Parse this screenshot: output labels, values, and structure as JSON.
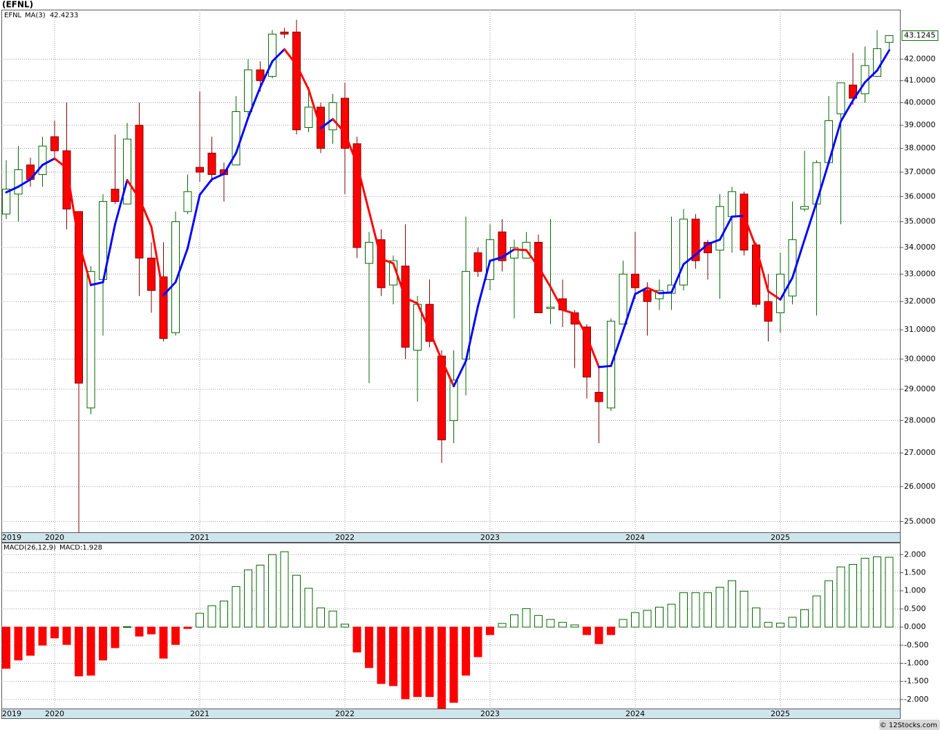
{
  "chart_data": [
    {
      "type": "candlestick",
      "title": "(EFNL)",
      "categories": [
        "2019",
        null,
        null,
        null,
        "2020",
        null,
        null,
        null,
        null,
        null,
        null,
        null,
        null,
        null,
        null,
        null,
        "2021",
        null,
        null,
        null,
        null,
        null,
        null,
        null,
        null,
        null,
        null,
        null,
        "2022",
        null,
        null,
        null,
        null,
        null,
        null,
        null,
        null,
        null,
        null,
        null,
        "2023",
        null,
        null,
        null,
        null,
        null,
        null,
        null,
        null,
        null,
        null,
        null,
        "2024",
        null,
        null,
        null,
        null,
        null,
        null,
        null,
        null,
        null,
        null,
        null,
        "2025",
        null,
        null,
        null,
        null,
        null,
        null,
        null,
        null,
        null
      ],
      "series": [
        {
          "name": "EFNL",
          "up_color": "#006400",
          "down_color": "#ff0000",
          "open": [
            35.3,
            36.1,
            37.3,
            36.9,
            38.5,
            37.9,
            35.4,
            28.4,
            32.8,
            36.3,
            35.7,
            39.0,
            33.6,
            32.9,
            30.9,
            35.4,
            37.2,
            37.8,
            37.1,
            37.3,
            39.6,
            41.5,
            41.2,
            43.3,
            43.3,
            38.9,
            39.8,
            38.8,
            40.2,
            38.2,
            33.4,
            34.3,
            32.6,
            33.3,
            30.3,
            31.9,
            30.1,
            28.0,
            30.0,
            33.8,
            32.8,
            34.6,
            33.6,
            33.6,
            34.2,
            31.75,
            32.1,
            31.6,
            31.1,
            28.9,
            28.4,
            31.2,
            33.0,
            32.4,
            32.1,
            32.3,
            32.6,
            35.1,
            34.2,
            33.9,
            35.2,
            36.1,
            34.1,
            32.0,
            31.6,
            32.2,
            35.5,
            35.7,
            37.4,
            39.5,
            40.8,
            40.4,
            41.2,
            42.8
          ],
          "high": [
            37.5,
            38.1,
            37.6,
            38.5,
            39.2,
            40.0,
            35.4,
            33.3,
            36.1,
            38.6,
            39.1,
            40.0,
            34.2,
            34.2,
            35.4,
            36.9,
            40.5,
            38.5,
            37.4,
            40.3,
            42.0,
            41.9,
            43.4,
            43.5,
            43.9,
            40.7,
            40.0,
            40.4,
            40.9,
            38.5,
            34.6,
            34.7,
            33.7,
            34.9,
            32.2,
            32.8,
            30.3,
            30.3,
            35.2,
            34.0,
            34.9,
            35.1,
            34.3,
            34.6,
            34.5,
            35.1,
            32.8,
            31.7,
            31.2,
            29.7,
            31.4,
            33.5,
            34.6,
            32.7,
            32.8,
            35.2,
            35.5,
            35.3,
            34.3,
            36.1,
            36.4,
            36.2,
            34.2,
            33.0,
            33.8,
            35.8,
            37.9,
            37.5,
            40.3,
            40.9,
            42.3,
            42.6,
            43.4,
            43.15
          ],
          "low": [
            35.1,
            35.0,
            36.4,
            36.4,
            37.5,
            34.7,
            24.7,
            28.2,
            30.8,
            35.7,
            35.7,
            32.2,
            31.6,
            30.6,
            30.8,
            35.3,
            36.6,
            36.6,
            35.8,
            37.3,
            39.3,
            40.5,
            41.1,
            43.0,
            38.6,
            38.7,
            37.8,
            38.2,
            36.1,
            33.6,
            29.2,
            32.2,
            31.9,
            30.0,
            28.6,
            30.4,
            26.7,
            27.3,
            28.8,
            32.9,
            32.4,
            33.1,
            31.4,
            33.6,
            31.6,
            31.2,
            31.1,
            29.7,
            28.7,
            27.3,
            28.3,
            31.2,
            32.1,
            30.8,
            31.7,
            31.7,
            32.4,
            33.2,
            32.8,
            32.1,
            33.8,
            33.7,
            31.8,
            30.6,
            30.9,
            31.9,
            35.4,
            31.5,
            37.3,
            34.9,
            39.9,
            40.0,
            41.2,
            42.4
          ],
          "close": [
            36.3,
            37.1,
            36.7,
            38.1,
            37.9,
            35.5,
            29.2,
            33.1,
            35.8,
            35.8,
            38.4,
            33.6,
            32.4,
            30.7,
            35.0,
            36.2,
            37.0,
            36.9,
            36.9,
            39.6,
            41.5,
            41.0,
            43.2,
            43.2,
            38.8,
            39.8,
            38.0,
            40.0,
            38.0,
            34.0,
            34.2,
            32.5,
            33.5,
            30.4,
            31.9,
            30.6,
            27.4,
            29.3,
            33.1,
            33.1,
            34.3,
            33.5,
            34.0,
            34.2,
            31.6,
            31.8,
            31.7,
            31.2,
            29.4,
            28.6,
            31.3,
            33.0,
            32.5,
            32.0,
            32.4,
            32.6,
            35.1,
            33.5,
            33.8,
            35.6,
            36.2,
            33.9,
            31.9,
            31.3,
            33.0,
            34.3,
            35.6,
            37.4,
            39.2,
            40.9,
            40.2,
            41.7,
            42.5,
            43.1245
          ]
        },
        {
          "name": "MA(3)",
          "type": "line",
          "up_color": "#0000ff",
          "down_color": "#ff0000",
          "values": [
            36.17,
            36.4,
            36.7,
            37.3,
            37.57,
            37.17,
            34.2,
            32.6,
            32.7,
            34.9,
            36.67,
            35.93,
            34.8,
            32.23,
            32.7,
            33.97,
            36.07,
            36.7,
            36.93,
            37.8,
            39.33,
            40.7,
            41.9,
            42.47,
            41.73,
            40.6,
            38.87,
            39.27,
            38.67,
            37.33,
            35.4,
            33.57,
            33.4,
            32.13,
            31.93,
            30.97,
            29.97,
            29.1,
            29.93,
            31.83,
            33.5,
            33.63,
            33.93,
            33.9,
            33.27,
            32.53,
            31.7,
            31.57,
            30.77,
            29.73,
            29.77,
            30.97,
            32.27,
            32.5,
            32.3,
            32.33,
            33.37,
            33.73,
            34.13,
            34.3,
            35.2,
            35.23,
            34.0,
            32.37,
            32.07,
            32.87,
            34.3,
            35.77,
            37.4,
            39.17,
            40.1,
            40.93,
            41.47,
            42.4233
          ]
        }
      ],
      "ylim": [
        24.7,
        44.4
      ],
      "log_scale": true,
      "grid": true,
      "yticks": [
        {
          "value": 25,
          "label": "25.0000"
        },
        {
          "value": 26,
          "label": "26.0000"
        },
        {
          "value": 27,
          "label": "27.0000"
        },
        {
          "value": 28,
          "label": "28.0000"
        },
        {
          "value": 29,
          "label": "29.0000"
        },
        {
          "value": 30,
          "label": "30.0000"
        },
        {
          "value": 31,
          "label": "31.0000"
        },
        {
          "value": 32,
          "label": "32.0000"
        },
        {
          "value": 33,
          "label": "33.0000"
        },
        {
          "value": 34,
          "label": "34.0000"
        },
        {
          "value": 35,
          "label": "35.0000"
        },
        {
          "value": 36,
          "label": "36.0000"
        },
        {
          "value": 37,
          "label": "37.0000"
        },
        {
          "value": 38,
          "label": "38.0000"
        },
        {
          "value": 39,
          "label": "39.0000"
        },
        {
          "value": 40,
          "label": "40.0000"
        },
        {
          "value": 41,
          "label": "41.0000"
        },
        {
          "value": 42,
          "label": "42.0000"
        }
      ]
    },
    {
      "type": "bar",
      "title": "MACD(26,12,9)",
      "value_caption": "MACD:1.928",
      "categories": [
        "2019",
        null,
        null,
        null,
        "2020",
        null,
        null,
        null,
        null,
        null,
        null,
        null,
        null,
        null,
        null,
        null,
        "2021",
        null,
        null,
        null,
        null,
        null,
        null,
        null,
        null,
        null,
        null,
        null,
        "2022",
        null,
        null,
        null,
        null,
        null,
        null,
        null,
        null,
        null,
        null,
        null,
        "2023",
        null,
        null,
        null,
        null,
        null,
        null,
        null,
        null,
        null,
        null,
        null,
        "2024",
        null,
        null,
        null,
        null,
        null,
        null,
        null,
        null,
        null,
        null,
        null,
        "2025",
        null,
        null,
        null,
        null,
        null,
        null,
        null,
        null,
        null
      ],
      "values": [
        -1.14,
        -0.91,
        -0.78,
        -0.5,
        -0.3,
        -0.48,
        -1.35,
        -1.33,
        -0.91,
        -0.57,
        0.01,
        -0.25,
        -0.19,
        -0.86,
        -0.48,
        -0.04,
        0.38,
        0.59,
        0.72,
        1.12,
        1.58,
        1.71,
        2.0,
        2.08,
        1.43,
        1.07,
        0.53,
        0.44,
        0.08,
        -0.69,
        -1.12,
        -1.56,
        -1.62,
        -1.98,
        -1.92,
        -1.92,
        -2.24,
        -2.08,
        -1.33,
        -0.82,
        -0.21,
        0.1,
        0.34,
        0.51,
        0.32,
        0.21,
        0.13,
        0.06,
        -0.21,
        -0.46,
        -0.21,
        0.21,
        0.4,
        0.46,
        0.55,
        0.63,
        0.95,
        0.95,
        0.95,
        1.1,
        1.28,
        0.99,
        0.53,
        0.13,
        0.11,
        0.27,
        0.48,
        0.86,
        1.28,
        1.66,
        1.73,
        1.9,
        1.94,
        1.928
      ],
      "up_color": "#006400",
      "down_color": "#ff0000",
      "ylim": [
        -2.25,
        2.33
      ],
      "grid": true,
      "yticks": [
        {
          "value": 2,
          "label": "2.000"
        },
        {
          "value": 1.5,
          "label": "1.500"
        },
        {
          "value": 1,
          "label": "1.000"
        },
        {
          "value": 0.5,
          "label": "0.500"
        },
        {
          "value": 0,
          "label": "0.000"
        },
        {
          "value": -0.5,
          "label": "-0.500"
        },
        {
          "value": -1,
          "label": "-1.000"
        },
        {
          "value": -1.5,
          "label": "-1.500"
        },
        {
          "value": -2,
          "label": "-2.000"
        }
      ]
    }
  ],
  "footer": "© 12Stocks.com"
}
